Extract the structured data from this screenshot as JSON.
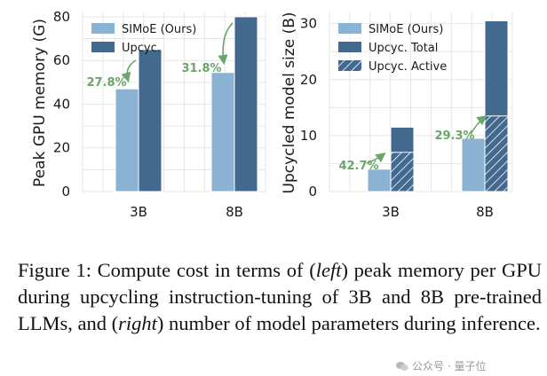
{
  "colors": {
    "light": "#8ab2d3",
    "dark": "#44698f",
    "grid": "#e6e6e6",
    "annotation": "#6aa56a",
    "watermark": "#9a9a9a"
  },
  "chart_data": [
    {
      "type": "bar",
      "title": "",
      "xlabel": "",
      "ylabel": "Peak GPU memory (G)",
      "categories": [
        "3B",
        "8B"
      ],
      "ylim": [
        0,
        82
      ],
      "yticks": [
        0,
        20,
        40,
        60,
        80
      ],
      "grid": true,
      "legend_position": "upper-left",
      "series": [
        {
          "name": "SIMoE (Ours)",
          "values": [
            47,
            54.5
          ]
        },
        {
          "name": "Upcyc.",
          "values": [
            65,
            80
          ]
        }
      ],
      "annotations": [
        "27.8%",
        "31.8%"
      ]
    },
    {
      "type": "bar",
      "title": "",
      "xlabel": "",
      "ylabel": "Upcycled model size (B)",
      "categories": [
        "3B",
        "8B"
      ],
      "ylim": [
        0,
        32
      ],
      "yticks": [
        0,
        10,
        20,
        30
      ],
      "grid": true,
      "legend_position": "upper-left",
      "series": [
        {
          "name": "SIMoE (Ours)",
          "values": [
            4,
            9.5
          ]
        },
        {
          "name": "Upcyc. Total",
          "values": [
            11.5,
            30.5
          ]
        },
        {
          "name": "Upcyc. Active",
          "values": [
            7,
            13.5
          ]
        }
      ],
      "annotations": [
        "42.7%",
        "29.3%"
      ]
    }
  ],
  "caption": {
    "prefix": "Figure 1: Compute cost in terms of (",
    "left_word": "left",
    "middle": ") peak memory per GPU during upcycling instruction-tuning of 3B and 8B pre-trained LLMs, and (",
    "right_word": "right",
    "suffix": ") number of model parameters during inference."
  },
  "watermark": {
    "icon": "wechat-icon",
    "text": "公众号 · 量子位"
  }
}
